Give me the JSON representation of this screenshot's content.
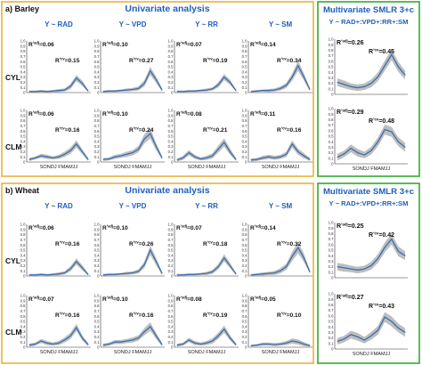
{
  "sections": [
    {
      "label": "a) Barley",
      "univariate_title": "Univariate analysis",
      "multivariate_title": "Multivariate  SMLR 3+c",
      "multivariate_formula": "Y ~ RAD+:VPD+:RR+:SM",
      "columns": [
        "Y ~ RAD",
        "Y ~ VPD",
        "Y ~ RR",
        "Y ~ SM"
      ],
      "rows": [
        {
          "label": "CYL",
          "uni_r2_adj": [
            "R²adj=0.06",
            "R²adj=0.10",
            "R²adj=0.07",
            "R²adj=0.14"
          ],
          "uni_r2_cv": [
            "R²cv=0.15",
            "R²cv=0.27",
            "R²cv=0.19",
            "R²cv=0.34"
          ],
          "multi_r2_adj": "R²adj=0.26",
          "multi_r2_cv": "R²cv=0.45"
        },
        {
          "label": "CLM",
          "uni_r2_adj": [
            "R²adj=0.06",
            "R²adj=0.10",
            "R²adj=0.08",
            "R²adj=0.11"
          ],
          "uni_r2_cv": [
            "R²cv=0.16",
            "R²cv=0.24",
            "R²cv=0.21",
            "R²cv=0.16"
          ],
          "multi_r2_adj": "R²adj=0.29",
          "multi_r2_cv": "R²cv=0.48"
        }
      ]
    },
    {
      "label": "b) Wheat",
      "univariate_title": "Univariate analysis",
      "multivariate_title": "Multivariate  SMLR 3+c",
      "multivariate_formula": "Y ~ RAD+:VPD+:RR+:SM",
      "columns": [
        "Y ~ RAD",
        "Y ~ VPD",
        "Y ~ RR",
        "Y ~ SM"
      ],
      "rows": [
        {
          "label": "CYL",
          "uni_r2_adj": [
            "R²adj=0.06",
            "R²adj=0.10",
            "R²adj=0.07",
            "R²adj=0.14"
          ],
          "uni_r2_cv": [
            "R²cv=0.16",
            "R²cv=0.26",
            "R²cv=0.18",
            "R²cv=0.32"
          ],
          "multi_r2_adj": "R²adj=0.25",
          "multi_r2_cv": "R²cv=0.42"
        },
        {
          "label": "CLM",
          "uni_r2_adj": [
            "R²adj=0.07",
            "R²adj=0.10",
            "R²adj=0.08",
            "R²adj=0.05"
          ],
          "uni_r2_cv": [
            "R²cv=0.16",
            "R²cv=0.16",
            "R²cv=0.19",
            "R²cv=0.10"
          ],
          "multi_r2_adj": "R²adj=0.27",
          "multi_r2_cv": "R²cv=0.43"
        }
      ]
    }
  ],
  "y_axis_ticks": [
    "1.0",
    "0.9",
    "0.8",
    "0.7",
    "0.6",
    "0.5",
    "0.4",
    "0.3",
    "0.2",
    "0.1",
    "0"
  ],
  "x_axis_label": "SONDJ FMAMJJ",
  "colors": {
    "line": "#3a6fb0",
    "band": "#a8a8a8",
    "title": "#1f5fbf",
    "uni_border": "#e8b43a",
    "multi_border": "#33a834"
  },
  "chart_data": {
    "type": "line",
    "x": [
      "S",
      "O",
      "N",
      "D",
      "J",
      "F",
      "M",
      "A",
      "M",
      "J",
      "J"
    ],
    "ylim": [
      0,
      1
    ],
    "panels": [
      {
        "section": "a) Barley",
        "row": "CYL",
        "col": "Y ~ RAD",
        "values": [
          0.02,
          0.02,
          0.03,
          0.02,
          0.03,
          0.04,
          0.05,
          0.12,
          0.28,
          0.18,
          0.03
        ],
        "band": [
          0.02,
          0.02,
          0.02,
          0.02,
          0.02,
          0.03,
          0.03,
          0.05,
          0.06,
          0.05,
          0.02
        ]
      },
      {
        "section": "a) Barley",
        "row": "CYL",
        "col": "Y ~ VPD",
        "values": [
          0.02,
          0.03,
          0.03,
          0.04,
          0.05,
          0.06,
          0.08,
          0.18,
          0.42,
          0.25,
          0.05
        ],
        "band": [
          0.02,
          0.02,
          0.02,
          0.02,
          0.03,
          0.03,
          0.04,
          0.06,
          0.08,
          0.06,
          0.03
        ]
      },
      {
        "section": "a) Barley",
        "row": "CYL",
        "col": "Y ~ RR",
        "values": [
          0.02,
          0.02,
          0.03,
          0.03,
          0.04,
          0.05,
          0.07,
          0.15,
          0.3,
          0.2,
          0.04
        ],
        "band": [
          0.02,
          0.02,
          0.02,
          0.02,
          0.02,
          0.03,
          0.03,
          0.05,
          0.06,
          0.05,
          0.02
        ]
      },
      {
        "section": "a) Barley",
        "row": "CYL",
        "col": "Y ~ SM",
        "values": [
          0.02,
          0.03,
          0.04,
          0.04,
          0.05,
          0.08,
          0.14,
          0.3,
          0.52,
          0.3,
          0.06
        ],
        "band": [
          0.02,
          0.02,
          0.02,
          0.03,
          0.03,
          0.04,
          0.05,
          0.07,
          0.1,
          0.07,
          0.03
        ]
      },
      {
        "section": "a) Barley",
        "row": "CLM",
        "col": "Y ~ RAD",
        "values": [
          0.05,
          0.08,
          0.12,
          0.1,
          0.08,
          0.1,
          0.15,
          0.22,
          0.35,
          0.2,
          0.05
        ],
        "band": [
          0.03,
          0.03,
          0.04,
          0.04,
          0.03,
          0.04,
          0.05,
          0.06,
          0.07,
          0.05,
          0.03
        ]
      },
      {
        "section": "a) Barley",
        "row": "CLM",
        "col": "Y ~ VPD",
        "values": [
          0.05,
          0.06,
          0.1,
          0.12,
          0.15,
          0.18,
          0.25,
          0.45,
          0.55,
          0.3,
          0.08
        ],
        "band": [
          0.03,
          0.03,
          0.04,
          0.04,
          0.05,
          0.05,
          0.06,
          0.09,
          0.1,
          0.07,
          0.03
        ]
      },
      {
        "section": "a) Barley",
        "row": "CLM",
        "col": "Y ~ RR",
        "values": [
          0.04,
          0.08,
          0.18,
          0.1,
          0.06,
          0.08,
          0.12,
          0.25,
          0.38,
          0.2,
          0.05
        ],
        "band": [
          0.03,
          0.04,
          0.05,
          0.04,
          0.03,
          0.04,
          0.05,
          0.07,
          0.08,
          0.06,
          0.03
        ]
      },
      {
        "section": "a) Barley",
        "row": "CLM",
        "col": "Y ~ SM",
        "values": [
          0.04,
          0.05,
          0.08,
          0.1,
          0.08,
          0.1,
          0.15,
          0.35,
          0.2,
          0.12,
          0.05
        ],
        "band": [
          0.03,
          0.03,
          0.04,
          0.04,
          0.04,
          0.04,
          0.05,
          0.07,
          0.06,
          0.05,
          0.03
        ]
      },
      {
        "section": "b) Wheat",
        "row": "CYL",
        "col": "Y ~ RAD",
        "values": [
          0.02,
          0.02,
          0.03,
          0.02,
          0.03,
          0.04,
          0.06,
          0.14,
          0.28,
          0.16,
          0.03
        ],
        "band": [
          0.02,
          0.02,
          0.02,
          0.02,
          0.02,
          0.03,
          0.03,
          0.05,
          0.06,
          0.05,
          0.02
        ]
      },
      {
        "section": "b) Wheat",
        "row": "CYL",
        "col": "Y ~ VPD",
        "values": [
          0.02,
          0.03,
          0.03,
          0.04,
          0.05,
          0.06,
          0.09,
          0.22,
          0.5,
          0.28,
          0.05
        ],
        "band": [
          0.02,
          0.02,
          0.02,
          0.02,
          0.03,
          0.03,
          0.04,
          0.06,
          0.09,
          0.07,
          0.03
        ]
      },
      {
        "section": "b) Wheat",
        "row": "CYL",
        "col": "Y ~ RR",
        "values": [
          0.02,
          0.02,
          0.03,
          0.03,
          0.04,
          0.05,
          0.08,
          0.18,
          0.35,
          0.2,
          0.04
        ],
        "band": [
          0.02,
          0.02,
          0.02,
          0.02,
          0.02,
          0.03,
          0.04,
          0.05,
          0.07,
          0.05,
          0.02
        ]
      },
      {
        "section": "b) Wheat",
        "row": "CYL",
        "col": "Y ~ SM",
        "values": [
          0.02,
          0.03,
          0.04,
          0.05,
          0.06,
          0.1,
          0.18,
          0.38,
          0.55,
          0.35,
          0.08
        ],
        "band": [
          0.02,
          0.02,
          0.03,
          0.03,
          0.04,
          0.05,
          0.06,
          0.09,
          0.11,
          0.08,
          0.03
        ]
      },
      {
        "section": "b) Wheat",
        "row": "CLM",
        "col": "Y ~ RAD",
        "values": [
          0.04,
          0.06,
          0.12,
          0.08,
          0.06,
          0.08,
          0.14,
          0.22,
          0.38,
          0.18,
          0.05
        ],
        "band": [
          0.03,
          0.03,
          0.04,
          0.04,
          0.03,
          0.04,
          0.05,
          0.06,
          0.07,
          0.05,
          0.03
        ]
      },
      {
        "section": "b) Wheat",
        "row": "CLM",
        "col": "Y ~ VPD",
        "values": [
          0.04,
          0.06,
          0.1,
          0.1,
          0.12,
          0.14,
          0.18,
          0.3,
          0.4,
          0.22,
          0.05
        ],
        "band": [
          0.03,
          0.03,
          0.04,
          0.04,
          0.04,
          0.05,
          0.05,
          0.07,
          0.08,
          0.06,
          0.03
        ]
      },
      {
        "section": "b) Wheat",
        "row": "CLM",
        "col": "Y ~ RR",
        "values": [
          0.04,
          0.06,
          0.14,
          0.08,
          0.06,
          0.08,
          0.12,
          0.22,
          0.35,
          0.18,
          0.05
        ],
        "band": [
          0.03,
          0.03,
          0.04,
          0.04,
          0.03,
          0.04,
          0.05,
          0.06,
          0.07,
          0.05,
          0.03
        ]
      },
      {
        "section": "b) Wheat",
        "row": "CLM",
        "col": "Y ~ SM",
        "values": [
          0.03,
          0.04,
          0.06,
          0.06,
          0.05,
          0.06,
          0.08,
          0.12,
          0.1,
          0.06,
          0.03
        ],
        "band": [
          0.02,
          0.02,
          0.03,
          0.03,
          0.03,
          0.03,
          0.04,
          0.05,
          0.05,
          0.04,
          0.02
        ]
      },
      {
        "section": "a) Barley",
        "row": "CYL",
        "col": "multivariate",
        "values": [
          0.22,
          0.18,
          0.14,
          0.12,
          0.14,
          0.2,
          0.32,
          0.52,
          0.72,
          0.5,
          0.35
        ],
        "band": [
          0.07,
          0.07,
          0.06,
          0.06,
          0.06,
          0.07,
          0.08,
          0.09,
          0.1,
          0.09,
          0.08
        ]
      },
      {
        "section": "a) Barley",
        "row": "CLM",
        "col": "multivariate",
        "values": [
          0.12,
          0.18,
          0.28,
          0.2,
          0.16,
          0.24,
          0.4,
          0.62,
          0.58,
          0.4,
          0.3
        ],
        "band": [
          0.06,
          0.06,
          0.07,
          0.07,
          0.06,
          0.07,
          0.08,
          0.09,
          0.09,
          0.08,
          0.08
        ]
      },
      {
        "section": "b) Wheat",
        "row": "CYL",
        "col": "multivariate",
        "values": [
          0.2,
          0.18,
          0.16,
          0.14,
          0.16,
          0.22,
          0.35,
          0.55,
          0.7,
          0.48,
          0.4
        ],
        "band": [
          0.07,
          0.07,
          0.06,
          0.06,
          0.06,
          0.07,
          0.08,
          0.09,
          0.1,
          0.09,
          0.08
        ]
      },
      {
        "section": "b) Wheat",
        "row": "CLM",
        "col": "multivariate",
        "values": [
          0.14,
          0.18,
          0.26,
          0.22,
          0.16,
          0.24,
          0.34,
          0.58,
          0.5,
          0.38,
          0.3
        ],
        "band": [
          0.06,
          0.06,
          0.07,
          0.07,
          0.06,
          0.07,
          0.08,
          0.09,
          0.09,
          0.08,
          0.08
        ]
      }
    ]
  }
}
